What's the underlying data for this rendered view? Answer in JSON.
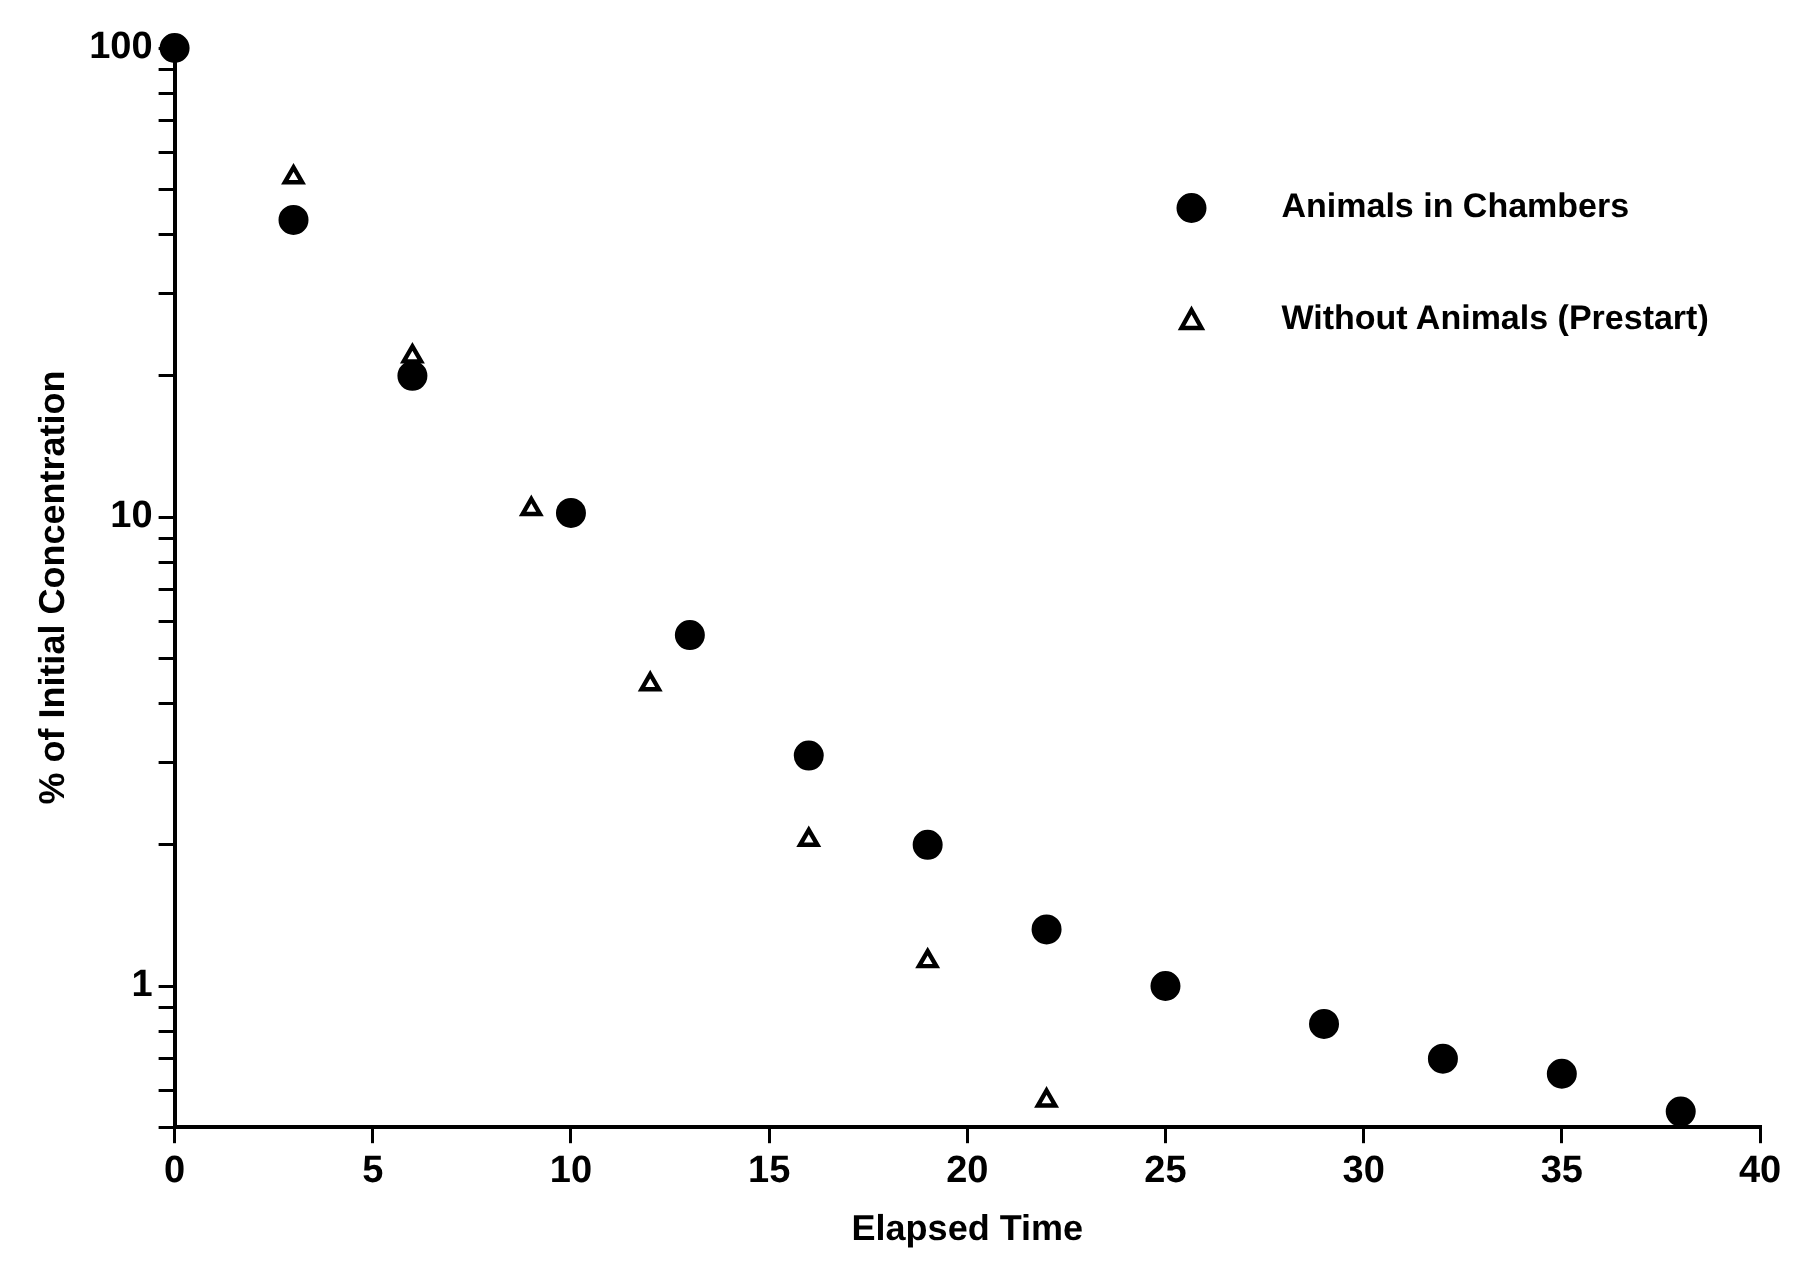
{
  "chart_data": {
    "type": "scatter",
    "xlabel": "Elapsed Time",
    "ylabel": "% of Initial Concentration",
    "log": "y",
    "grid": false,
    "legend": "top right",
    "xlim": [
      0,
      40
    ],
    "xticks": [
      0,
      5,
      10,
      15,
      20,
      25,
      30,
      35,
      40
    ],
    "ylim": [
      0.5,
      100
    ],
    "yticks": [
      {
        "value": 0.5,
        "label": null
      },
      {
        "value": 0.6,
        "label": null
      },
      {
        "value": 0.7,
        "label": null
      },
      {
        "value": 0.8,
        "label": null
      },
      {
        "value": 0.9,
        "label": null
      },
      1,
      {
        "value": 2,
        "label": null
      },
      {
        "value": 3,
        "label": null
      },
      {
        "value": 4,
        "label": null
      },
      {
        "value": 5,
        "label": null
      },
      {
        "value": 6,
        "label": null
      },
      {
        "value": 7,
        "label": null
      },
      {
        "value": 8,
        "label": null
      },
      {
        "value": 9,
        "label": null
      },
      10,
      {
        "value": 20,
        "label": null
      },
      {
        "value": 30,
        "label": null
      },
      {
        "value": 40,
        "label": null
      },
      {
        "value": 50,
        "label": null
      },
      {
        "value": 60,
        "label": null
      },
      {
        "value": 70,
        "label": null
      },
      {
        "value": 80,
        "label": null
      },
      {
        "value": 90,
        "label": null
      },
      100
    ],
    "series": [
      {
        "name": "Animals in Chambers",
        "color": "#000000",
        "marker": "circle",
        "x": [
          0,
          3,
          6,
          10,
          13,
          16,
          19,
          22,
          25,
          29,
          32,
          35,
          38
        ],
        "values": [
          100,
          43,
          20,
          10.2,
          5.6,
          3.1,
          2.0,
          1.32,
          1.0,
          0.83,
          0.7,
          0.65,
          0.54
        ]
      },
      {
        "name": "Without Animals (Prestart)",
        "color": "#000000",
        "marker": "triangle",
        "x": [
          3,
          6,
          9,
          12,
          16,
          19,
          22
        ],
        "values": [
          53,
          22,
          10.4,
          4.4,
          2.05,
          1.13,
          0.57
        ]
      }
    ]
  }
}
